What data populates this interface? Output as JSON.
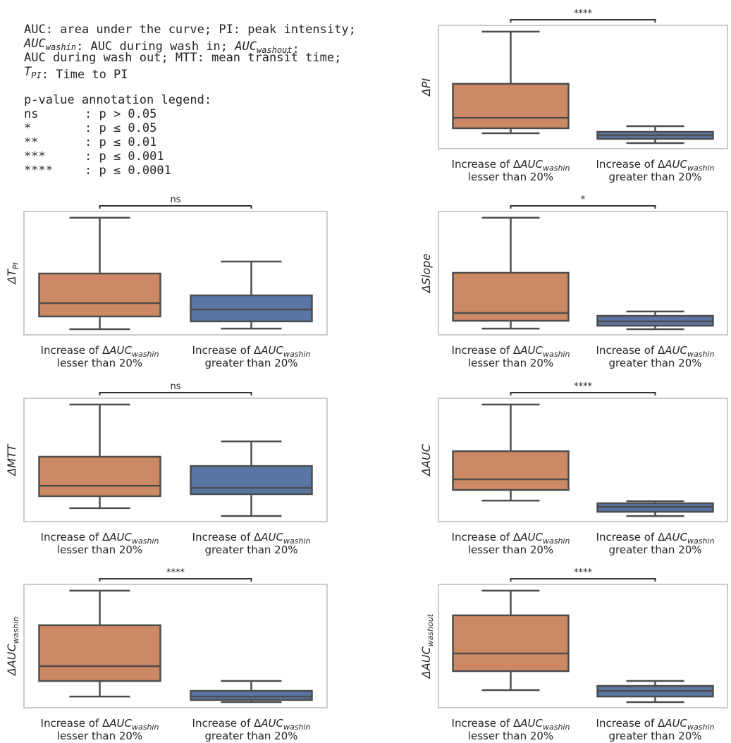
{
  "notes": {
    "definitions": [
      [
        {
          "text": "AUC: area under the curve; PI: peak intensity;"
        }
      ],
      [
        {
          "text": "AUC",
          "sub": "washin",
          "italic": true
        },
        {
          "text": ": AUC during wash in; "
        },
        {
          "text": "AUC",
          "sub": "washout",
          "italic": true
        },
        {
          "text": ":"
        }
      ],
      [
        {
          "text": "AUC during wash out; MTT: mean transit time;"
        }
      ],
      [
        {
          "text": "T",
          "sub": "PI",
          "italic": true
        },
        {
          "text": ": Time to PI"
        }
      ]
    ],
    "legend_title": "p-value annotation legend:",
    "legend_rows": [
      {
        "symbol": "ns",
        "condition": ": p > 0.05"
      },
      {
        "symbol": "*",
        "condition": ": p ≤ 0.05"
      },
      {
        "symbol": "**",
        "condition": ": p ≤ 0.01"
      },
      {
        "symbol": "***",
        "condition": ": p ≤ 0.001"
      },
      {
        "symbol": "****",
        "condition": ": p ≤ 0.0001"
      }
    ]
  },
  "chart_data": [
    {
      "type": "box",
      "y_label": [
        {
          "text": "ΔPI",
          "italic": true
        }
      ],
      "significance": "****",
      "ylim": [
        0,
        100
      ],
      "categories": [
        {
          "line1": [
            {
              "text": "Increase of Δ"
            },
            {
              "text": "AUC",
              "sub": "washin",
              "italic": true
            }
          ],
          "line2": "lesser than 20%"
        },
        {
          "line1": [
            {
              "text": "Increase of Δ"
            },
            {
              "text": "AUC",
              "sub": "washin",
              "italic": true
            }
          ],
          "line2": "greater than 20%"
        }
      ],
      "boxes": [
        {
          "color": "#cc8963",
          "whisker_low": 12.6,
          "q1": 16.6,
          "median": 25.1,
          "q3": 52.6,
          "whisker_high": 94.9
        },
        {
          "color": "#5975a4",
          "whisker_low": 4.6,
          "q1": 8.0,
          "median": 10.9,
          "q3": 13.7,
          "whisker_high": 18.3
        }
      ]
    },
    {
      "type": "box",
      "y_label": [
        {
          "text": "ΔT",
          "sub": "PI",
          "italic": true
        }
      ],
      "significance": "ns",
      "ylim": [
        0,
        100
      ],
      "categories": [
        {
          "line1": [
            {
              "text": "Increase of Δ"
            },
            {
              "text": "AUC",
              "sub": "washin",
              "italic": true
            }
          ],
          "line2": "lesser than 20%"
        },
        {
          "line1": [
            {
              "text": "Increase of Δ"
            },
            {
              "text": "AUC",
              "sub": "washin",
              "italic": true
            }
          ],
          "line2": "greater than 20%"
        }
      ],
      "boxes": [
        {
          "color": "#cc8963",
          "whisker_low": 4.6,
          "q1": 14.9,
          "median": 25.7,
          "q3": 49.7,
          "whisker_high": 94.9
        },
        {
          "color": "#5975a4",
          "whisker_low": 5.1,
          "q1": 10.9,
          "median": 20.6,
          "q3": 32,
          "whisker_high": 59.4
        }
      ]
    },
    {
      "type": "box",
      "y_label": [
        {
          "text": "ΔSlope",
          "italic": true
        }
      ],
      "significance": "*",
      "ylim": [
        0,
        100
      ],
      "categories": [
        {
          "line1": [
            {
              "text": "Increase of Δ"
            },
            {
              "text": "AUC",
              "sub": "washin",
              "italic": true
            }
          ],
          "line2": "lesser than 20%"
        },
        {
          "line1": [
            {
              "text": "Increase of Δ"
            },
            {
              "text": "AUC",
              "sub": "washin",
              "italic": true
            }
          ],
          "line2": "greater than 20%"
        }
      ],
      "boxes": [
        {
          "color": "#cc8963",
          "whisker_low": 5.1,
          "q1": 11.4,
          "median": 17.7,
          "q3": 50.3,
          "whisker_high": 94.9
        },
        {
          "color": "#5975a4",
          "whisker_low": 4.6,
          "q1": 7.4,
          "median": 10.9,
          "q3": 15.4,
          "whisker_high": 18.9
        }
      ]
    },
    {
      "type": "box",
      "y_label": [
        {
          "text": "ΔMTT",
          "italic": true
        }
      ],
      "significance": "ns",
      "ylim": [
        0,
        100
      ],
      "categories": [
        {
          "line1": [
            {
              "text": "Increase of Δ"
            },
            {
              "text": "AUC",
              "sub": "washin",
              "italic": true
            }
          ],
          "line2": "lesser than 20%"
        },
        {
          "line1": [
            {
              "text": "Increase of Δ"
            },
            {
              "text": "AUC",
              "sub": "washin",
              "italic": true
            }
          ],
          "line2": "greater than 20%"
        }
      ],
      "boxes": [
        {
          "color": "#cc8963",
          "whisker_low": 10.9,
          "q1": 20.6,
          "median": 29.1,
          "q3": 52.6,
          "whisker_high": 94.9
        },
        {
          "color": "#5975a4",
          "whisker_low": 4.6,
          "q1": 22.3,
          "median": 27.4,
          "q3": 45.1,
          "whisker_high": 65.1
        }
      ]
    },
    {
      "type": "box",
      "y_label": [
        {
          "text": "ΔAUC",
          "italic": true
        }
      ],
      "significance": "****",
      "ylim": [
        0,
        100
      ],
      "categories": [
        {
          "line1": [
            {
              "text": "Increase of Δ"
            },
            {
              "text": "AUC",
              "sub": "washin",
              "italic": true
            }
          ],
          "line2": "lesser than 20%"
        },
        {
          "line1": [
            {
              "text": "Increase of Δ"
            },
            {
              "text": "AUC",
              "sub": "washin",
              "italic": true
            }
          ],
          "line2": "greater than 20%"
        }
      ],
      "boxes": [
        {
          "color": "#cc8963",
          "whisker_low": 17.1,
          "q1": 25.7,
          "median": 34.3,
          "q3": 57.1,
          "whisker_high": 94.9
        },
        {
          "color": "#5975a4",
          "whisker_low": 4.6,
          "q1": 8.0,
          "median": 12.0,
          "q3": 14.9,
          "whisker_high": 16.6
        }
      ]
    },
    {
      "type": "box",
      "y_label": [
        {
          "text": "ΔAUC",
          "sub": "washin",
          "italic": true
        }
      ],
      "significance": "****",
      "ylim": [
        0,
        100
      ],
      "categories": [
        {
          "line1": [
            {
              "text": "Increase of Δ"
            },
            {
              "text": "AUC",
              "sub": "washin",
              "italic": true
            }
          ],
          "line2": "lesser than 20%"
        },
        {
          "line1": [
            {
              "text": "Increase of Δ"
            },
            {
              "text": "AUC",
              "sub": "washin",
              "italic": true
            }
          ],
          "line2": "greater than 20%"
        }
      ],
      "boxes": [
        {
          "color": "#cc8963",
          "whisker_low": 9.1,
          "q1": 21.7,
          "median": 33.7,
          "q3": 66.9,
          "whisker_high": 94.9
        },
        {
          "color": "#5975a4",
          "whisker_low": 4.6,
          "q1": 6.3,
          "median": 9.1,
          "q3": 13.7,
          "whisker_high": 21.7
        }
      ]
    },
    {
      "type": "box",
      "y_label": [
        {
          "text": "ΔAUC",
          "sub": "washout",
          "italic": true
        }
      ],
      "significance": "****",
      "ylim": [
        0,
        100
      ],
      "categories": [
        {
          "line1": [
            {
              "text": "Increase of Δ"
            },
            {
              "text": "AUC",
              "sub": "washin",
              "italic": true
            }
          ],
          "line2": "lesser than 20%"
        },
        {
          "line1": [
            {
              "text": "Increase of Δ"
            },
            {
              "text": "AUC",
              "sub": "washin",
              "italic": true
            }
          ],
          "line2": "greater than 20%"
        }
      ],
      "boxes": [
        {
          "color": "#cc8963",
          "whisker_low": 14.3,
          "q1": 29.7,
          "median": 44.0,
          "q3": 74.9,
          "whisker_high": 94.9
        },
        {
          "color": "#5975a4",
          "whisker_low": 4.6,
          "q1": 9.1,
          "median": 13.7,
          "q3": 17.7,
          "whisker_high": 21.7
        }
      ]
    }
  ]
}
